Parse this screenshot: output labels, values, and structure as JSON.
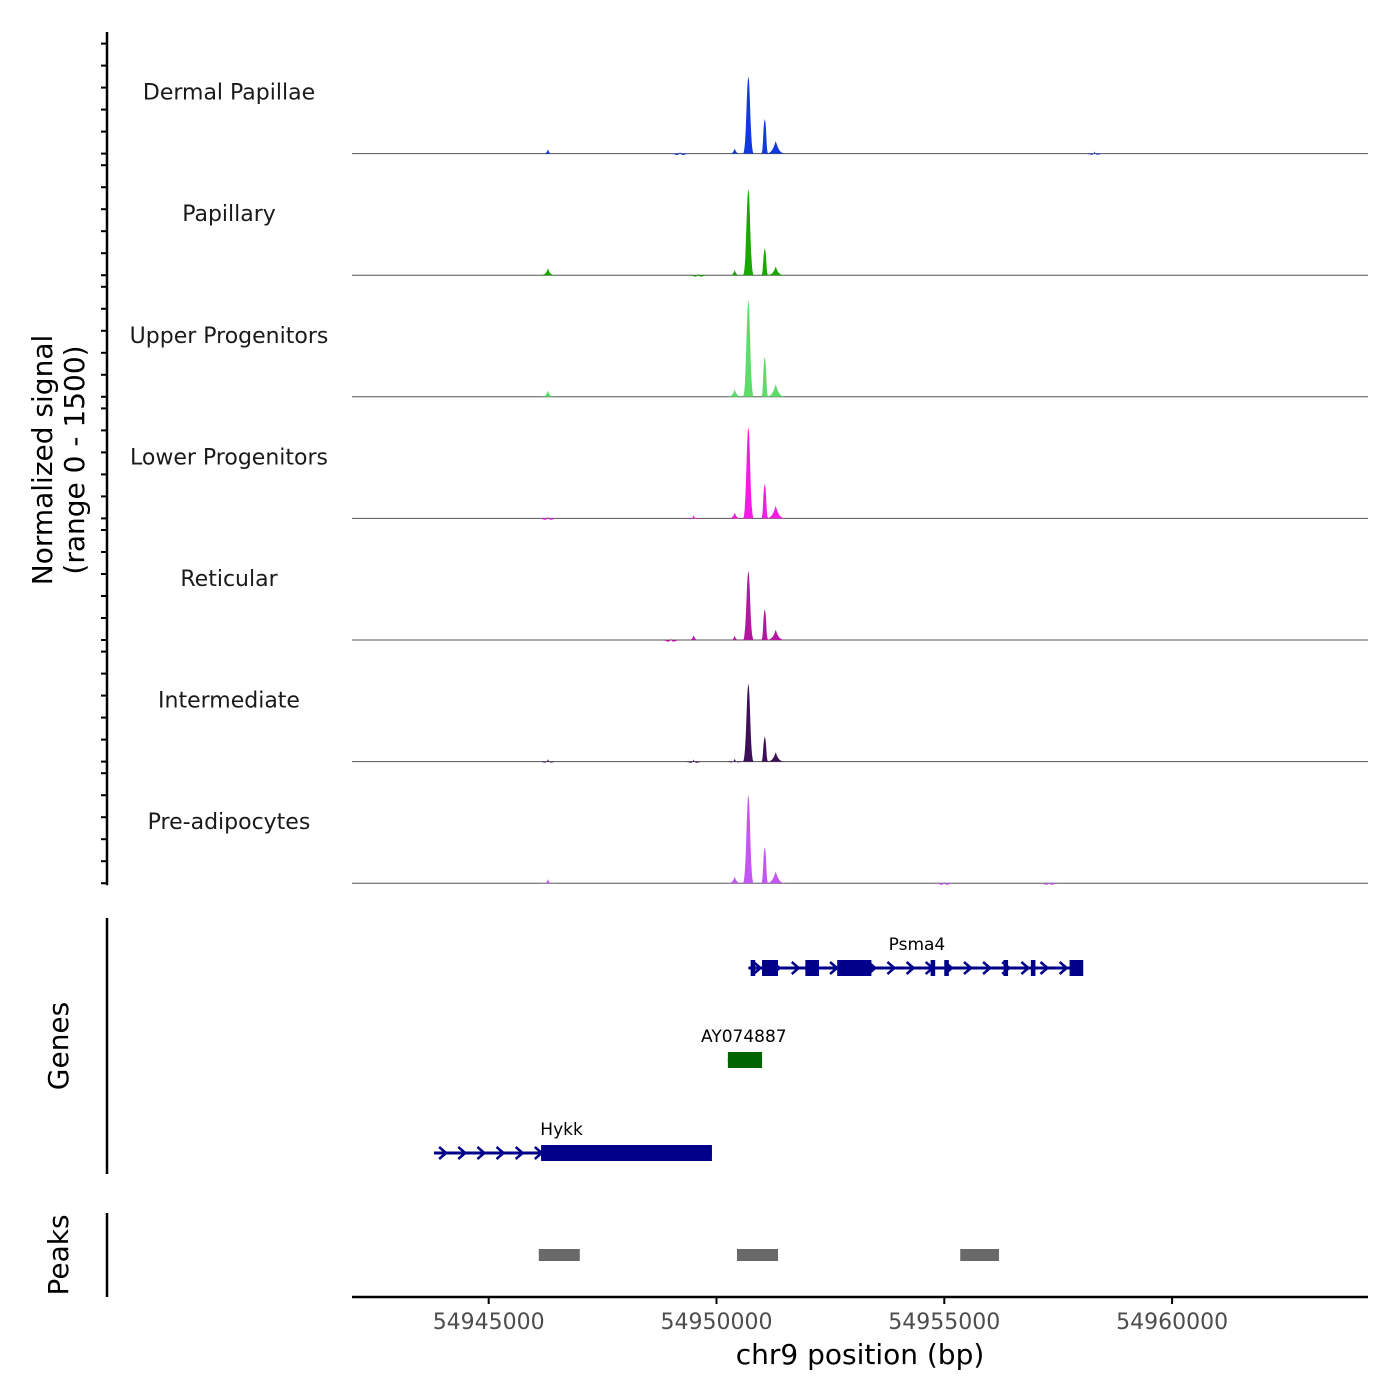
{
  "chart_data": {
    "type": "area",
    "title": "",
    "xlabel": "chr9 position (bp)",
    "ylabel_line1": "Normalized signal",
    "ylabel_line2": "(range 0 - 1500)",
    "ylim": [
      0,
      1500
    ],
    "xlim": [
      54942000,
      54964300
    ],
    "x_ticks": [
      54945000,
      54950000,
      54955000,
      54960000
    ],
    "x_tick_labels": [
      "54945000",
      "54950000",
      "54955000",
      "54960000"
    ],
    "tracks": [
      {
        "name": "Dermal Papillae",
        "color": "#1139dc",
        "peaks": [
          {
            "x": 54950700,
            "h": 1050
          },
          {
            "x": 54951060,
            "h": 470
          },
          {
            "x": 54951300,
            "h": 170
          },
          {
            "x": 54950400,
            "h": 70
          },
          {
            "x": 54946300,
            "h": 60
          },
          {
            "x": 54949200,
            "h": 25
          },
          {
            "x": 54958300,
            "h": 30
          }
        ]
      },
      {
        "name": "Papillary",
        "color": "#18a800",
        "peaks": [
          {
            "x": 54950700,
            "h": 1170
          },
          {
            "x": 54951060,
            "h": 370
          },
          {
            "x": 54951300,
            "h": 120
          },
          {
            "x": 54950400,
            "h": 70
          },
          {
            "x": 54946300,
            "h": 95
          },
          {
            "x": 54949600,
            "h": 25
          }
        ]
      },
      {
        "name": "Upper Progenitors",
        "color": "#5ddc6b",
        "peaks": [
          {
            "x": 54950700,
            "h": 1310
          },
          {
            "x": 54951060,
            "h": 540
          },
          {
            "x": 54951300,
            "h": 170
          },
          {
            "x": 54950400,
            "h": 100
          },
          {
            "x": 54946300,
            "h": 85
          }
        ]
      },
      {
        "name": "Lower Progenitors",
        "color": "#f31ce5",
        "peaks": [
          {
            "x": 54950700,
            "h": 1240
          },
          {
            "x": 54951060,
            "h": 470
          },
          {
            "x": 54951300,
            "h": 170
          },
          {
            "x": 54950400,
            "h": 80
          },
          {
            "x": 54949500,
            "h": 45
          },
          {
            "x": 54946300,
            "h": 25
          }
        ]
      },
      {
        "name": "Reticular",
        "color": "#b3179e",
        "peaks": [
          {
            "x": 54950700,
            "h": 940
          },
          {
            "x": 54951060,
            "h": 420
          },
          {
            "x": 54951300,
            "h": 140
          },
          {
            "x": 54950400,
            "h": 60
          },
          {
            "x": 54949500,
            "h": 65
          },
          {
            "x": 54949000,
            "h": 20
          }
        ]
      },
      {
        "name": "Intermediate",
        "color": "#3d0f56",
        "peaks": [
          {
            "x": 54950700,
            "h": 1060
          },
          {
            "x": 54951060,
            "h": 340
          },
          {
            "x": 54951300,
            "h": 130
          },
          {
            "x": 54950400,
            "h": 40
          },
          {
            "x": 54949500,
            "h": 30
          },
          {
            "x": 54946300,
            "h": 35
          }
        ]
      },
      {
        "name": "Pre-adipocytes",
        "color": "#c457f4",
        "peaks": [
          {
            "x": 54950700,
            "h": 1200
          },
          {
            "x": 54951060,
            "h": 490
          },
          {
            "x": 54951300,
            "h": 160
          },
          {
            "x": 54950400,
            "h": 90
          },
          {
            "x": 54946300,
            "h": 55
          },
          {
            "x": 54955000,
            "h": 20
          },
          {
            "x": 54957300,
            "h": 20
          }
        ]
      }
    ],
    "genes_label": "Genes",
    "genes": [
      {
        "name": "Psma4",
        "color": "#00008b",
        "start": 54950700,
        "end": 54958000,
        "row": 0,
        "label_pos": 54954400,
        "exons": [
          [
            54950750,
            54950850
          ],
          [
            54951000,
            54951350
          ],
          [
            54951950,
            54952250
          ],
          [
            54952650,
            54953400
          ],
          [
            54954700,
            54954800
          ],
          [
            54955000,
            54955100
          ],
          [
            54956300,
            54956400
          ],
          [
            54956900,
            54957000
          ],
          [
            54957750,
            54958050
          ]
        ]
      },
      {
        "name": "AY074887",
        "color": "#006400",
        "start": 54950250,
        "end": 54951000,
        "row": 1,
        "label_pos": 54950600,
        "exons": [
          [
            54950250,
            54951000
          ]
        ]
      },
      {
        "name": "Hykk",
        "color": "#00008b",
        "start": 54943800,
        "end": 54949900,
        "row": 2,
        "label_pos": 54946600,
        "exons": [
          [
            54946150,
            54949900
          ]
        ]
      }
    ],
    "peaks_label": "Peaks",
    "peak_regions": [
      [
        54946100,
        54947000
      ],
      [
        54950450,
        54951350
      ],
      [
        54955350,
        54956200
      ]
    ]
  }
}
